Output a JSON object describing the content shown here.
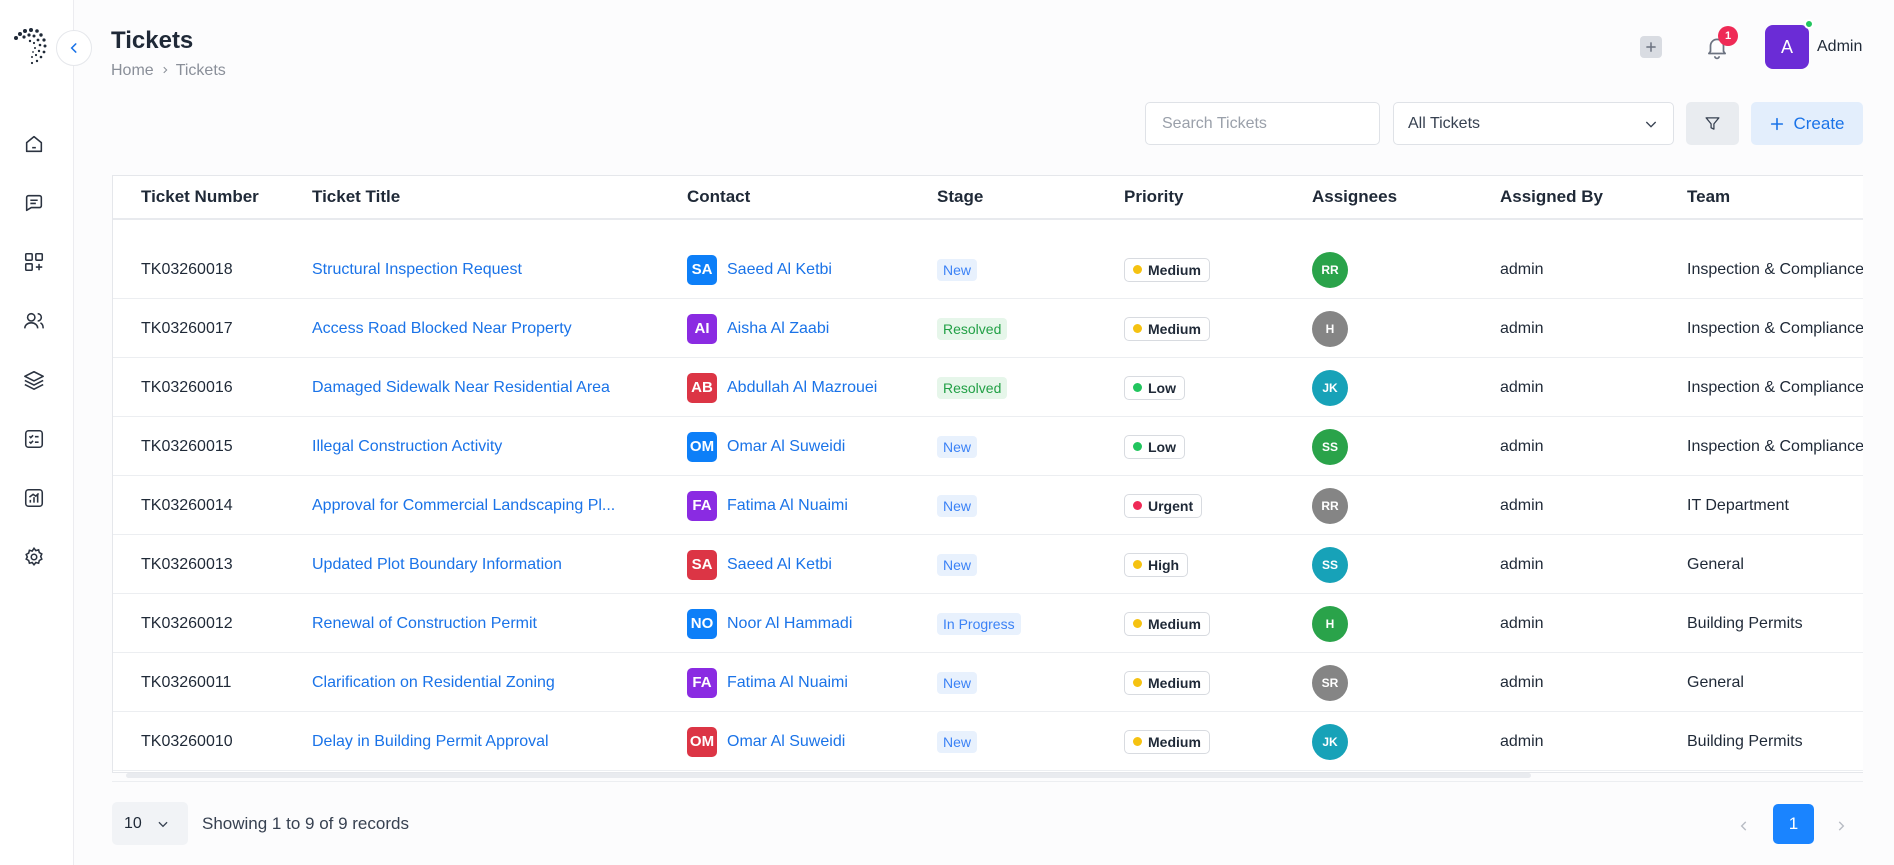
{
  "header": {
    "title": "Tickets",
    "breadcrumb": [
      "Home",
      "Tickets"
    ],
    "notification_count": "1",
    "user_initial": "A",
    "user_name": "Admin"
  },
  "toolbar": {
    "search_placeholder": "Search Tickets",
    "filter_value": "All Tickets",
    "create_label": "Create"
  },
  "colors": {
    "accent": "#1a73e8",
    "primary_button": "#1a84ff",
    "avatar": "#6b2cd6"
  },
  "sidebar": {
    "icons": [
      "home-icon",
      "chat-icon",
      "apps-add-icon",
      "users-icon",
      "layers-icon",
      "checklist-icon",
      "reports-icon",
      "settings-icon"
    ]
  },
  "table": {
    "columns": [
      "Ticket Number",
      "Ticket Title",
      "Contact",
      "Stage",
      "Priority",
      "Assignees",
      "Assigned By",
      "Team"
    ],
    "rows": [
      {
        "number": "TK03260018",
        "title": "Structural Inspection Request",
        "initials": "SA",
        "initials_color": "#0d7ff8",
        "contact": "Saeed Al Ketbi",
        "stage": "New",
        "stage_type": "new",
        "priority": "Medium",
        "priority_color": "#f5c211",
        "assignee": "RR",
        "assignee_color": "#2aa34a",
        "assigned_by": "admin",
        "team": "Inspection & Compliance"
      },
      {
        "number": "TK03260017",
        "title": "Access Road Blocked Near Property",
        "initials": "AI",
        "initials_color": "#8a2be2",
        "contact": "Aisha Al Zaabi",
        "stage": "Resolved",
        "stage_type": "resolved",
        "priority": "Medium",
        "priority_color": "#f5c211",
        "assignee": "H",
        "assignee_color": "#858585",
        "assigned_by": "admin",
        "team": "Inspection & Compliance"
      },
      {
        "number": "TK03260016",
        "title": "Damaged Sidewalk Near Residential Area",
        "initials": "AB",
        "initials_color": "#dc3545",
        "contact": "Abdullah Al Mazrouei",
        "stage": "Resolved",
        "stage_type": "resolved",
        "priority": "Low",
        "priority_color": "#22c55e",
        "assignee": "JK",
        "assignee_color": "#17a2b8",
        "assigned_by": "admin",
        "team": "Inspection & Compliance"
      },
      {
        "number": "TK03260015",
        "title": "Illegal Construction Activity",
        "initials": "OM",
        "initials_color": "#0d7ff8",
        "contact": "Omar Al Suweidi",
        "stage": "New",
        "stage_type": "new",
        "priority": "Low",
        "priority_color": "#22c55e",
        "assignee": "SS",
        "assignee_color": "#2aa34a",
        "assigned_by": "admin",
        "team": "Inspection & Compliance"
      },
      {
        "number": "TK03260014",
        "title": "Approval for Commercial Landscaping Pl...",
        "initials": "FA",
        "initials_color": "#8a2be2",
        "contact": "Fatima Al Nuaimi",
        "stage": "New",
        "stage_type": "new",
        "priority": "Urgent",
        "priority_color": "#ef2a56",
        "assignee": "RR",
        "assignee_color": "#858585",
        "assigned_by": "admin",
        "team": "IT Department"
      },
      {
        "number": "TK03260013",
        "title": "Updated Plot Boundary Information",
        "initials": "SA",
        "initials_color": "#dc3545",
        "contact": "Saeed Al Ketbi",
        "stage": "New",
        "stage_type": "new",
        "priority": "High",
        "priority_color": "#f5c211",
        "assignee": "SS",
        "assignee_color": "#17a2b8",
        "assigned_by": "admin",
        "team": "General"
      },
      {
        "number": "TK03260012",
        "title": "Renewal of Construction Permit",
        "initials": "NO",
        "initials_color": "#0d7ff8",
        "contact": "Noor Al Hammadi",
        "stage": "In Progress",
        "stage_type": "progress",
        "priority": "Medium",
        "priority_color": "#f5c211",
        "assignee": "H",
        "assignee_color": "#2aa34a",
        "assigned_by": "admin",
        "team": "Building Permits"
      },
      {
        "number": "TK03260011",
        "title": "Clarification on Residential Zoning",
        "initials": "FA",
        "initials_color": "#8a2be2",
        "contact": "Fatima Al Nuaimi",
        "stage": "New",
        "stage_type": "new",
        "priority": "Medium",
        "priority_color": "#f5c211",
        "assignee": "SR",
        "assignee_color": "#858585",
        "assigned_by": "admin",
        "team": "General"
      },
      {
        "number": "TK03260010",
        "title": "Delay in Building Permit Approval",
        "initials": "OM",
        "initials_color": "#dc3545",
        "contact": "Omar Al Suweidi",
        "stage": "New",
        "stage_type": "new",
        "priority": "Medium",
        "priority_color": "#f5c211",
        "assignee": "JK",
        "assignee_color": "#17a2b8",
        "assigned_by": "admin",
        "team": "Building Permits"
      }
    ]
  },
  "footer": {
    "page_size": "10",
    "records_text": "Showing 1 to 9 of 9 records",
    "current_page": "1"
  }
}
